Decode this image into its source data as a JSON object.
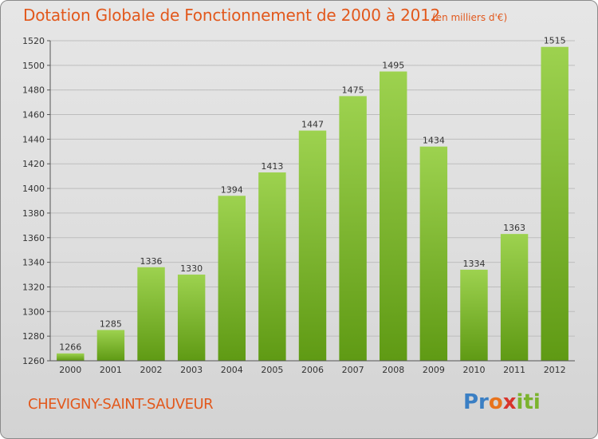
{
  "header": {
    "title": "Dotation Globale de Fonctionnement de 2000 à 2012",
    "unit": "(en milliers d'€)"
  },
  "footer": {
    "commune": "CHEVIGNY-SAINT-SAUVEUR",
    "logo": "Proxiti"
  },
  "colors": {
    "title": "#e2581c",
    "bar_light": "#9dd24f",
    "bar_dark": "#5f9a14",
    "grid": "#bdbdbd",
    "axis": "#555555"
  },
  "chart_data": {
    "type": "bar",
    "title": "Dotation Globale de Fonctionnement de 2000 à 2012",
    "subtitle": "(en milliers d'€)",
    "xlabel": "",
    "ylabel": "",
    "categories": [
      "2000",
      "2001",
      "2002",
      "2003",
      "2004",
      "2005",
      "2006",
      "2007",
      "2008",
      "2009",
      "2010",
      "2011",
      "2012"
    ],
    "values": [
      1266,
      1285,
      1336,
      1330,
      1394,
      1413,
      1447,
      1475,
      1495,
      1434,
      1334,
      1363,
      1515
    ],
    "ylim": [
      1260,
      1520
    ],
    "yticks": [
      1260,
      1280,
      1300,
      1320,
      1340,
      1360,
      1380,
      1400,
      1420,
      1440,
      1460,
      1480,
      1500,
      1520
    ],
    "grid": true,
    "legend": "none"
  }
}
